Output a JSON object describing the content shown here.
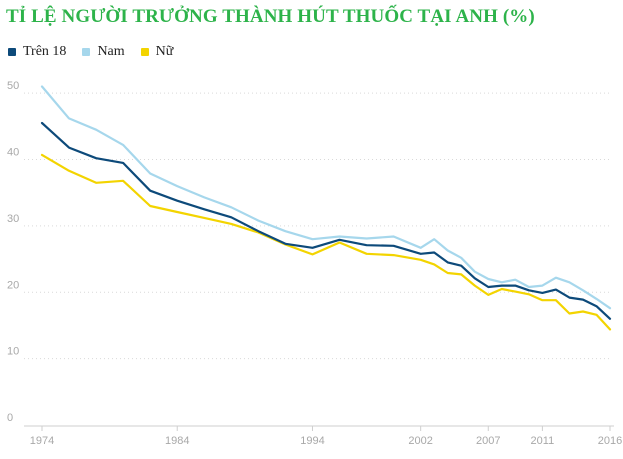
{
  "title": "TỈ LỆ NGƯỜI TRƯỞNG THÀNH HÚT THUỐC TẠI ANH (%)",
  "legend": [
    {
      "label": "Trên 18",
      "color": "#0d4a7a"
    },
    {
      "label": "Nam",
      "color": "#a6d7ec"
    },
    {
      "label": "Nữ",
      "color": "#f3d400"
    }
  ],
  "chart_data": {
    "type": "line",
    "title": "TỈ LỆ NGƯỜI TRƯỞNG THÀNH HÚT THUỐC TẠI ANH (%)",
    "xlim": [
      1974,
      2016
    ],
    "ylim": [
      0,
      55
    ],
    "xticks": [
      1974,
      1984,
      1994,
      2002,
      2007,
      2011,
      2016
    ],
    "yticks": [
      0,
      10,
      20,
      30,
      40,
      50
    ],
    "grid": "horizontal dotted",
    "legend_position": "top-left",
    "x": [
      1974,
      1976,
      1978,
      1980,
      1982,
      1984,
      1986,
      1988,
      1990,
      1992,
      1994,
      1996,
      1998,
      2000,
      2002,
      2003,
      2004,
      2005,
      2006,
      2007,
      2008,
      2009,
      2010,
      2011,
      2012,
      2013,
      2014,
      2015,
      2016
    ],
    "series": [
      {
        "name": "Trên 18",
        "color": "#0d4a7a",
        "values": [
          45.5,
          41.8,
          40.2,
          39.5,
          35.3,
          33.8,
          32.5,
          31.3,
          29.2,
          27.3,
          26.7,
          27.9,
          27.1,
          27.0,
          25.8,
          26.0,
          24.5,
          24.0,
          22.1,
          20.8,
          21.0,
          21.0,
          20.3,
          19.9,
          20.4,
          19.2,
          18.9,
          17.9,
          16.0
        ]
      },
      {
        "name": "Nam",
        "color": "#a6d7ec",
        "values": [
          51.0,
          46.2,
          44.5,
          42.2,
          37.9,
          36.0,
          34.3,
          32.8,
          30.8,
          29.2,
          28.0,
          28.4,
          28.1,
          28.4,
          26.7,
          28.0,
          26.3,
          25.2,
          23.1,
          22.0,
          21.5,
          21.9,
          20.8,
          21.0,
          22.2,
          21.5,
          20.3,
          19.0,
          17.6
        ]
      },
      {
        "name": "Nữ",
        "color": "#f3d400",
        "values": [
          40.7,
          38.3,
          36.5,
          36.8,
          33.0,
          32.1,
          31.2,
          30.3,
          29.0,
          27.2,
          25.7,
          27.5,
          25.8,
          25.6,
          24.9,
          24.2,
          22.9,
          22.7,
          21.0,
          19.6,
          20.5,
          20.1,
          19.7,
          18.8,
          18.8,
          16.8,
          17.1,
          16.6,
          14.4
        ]
      }
    ]
  }
}
